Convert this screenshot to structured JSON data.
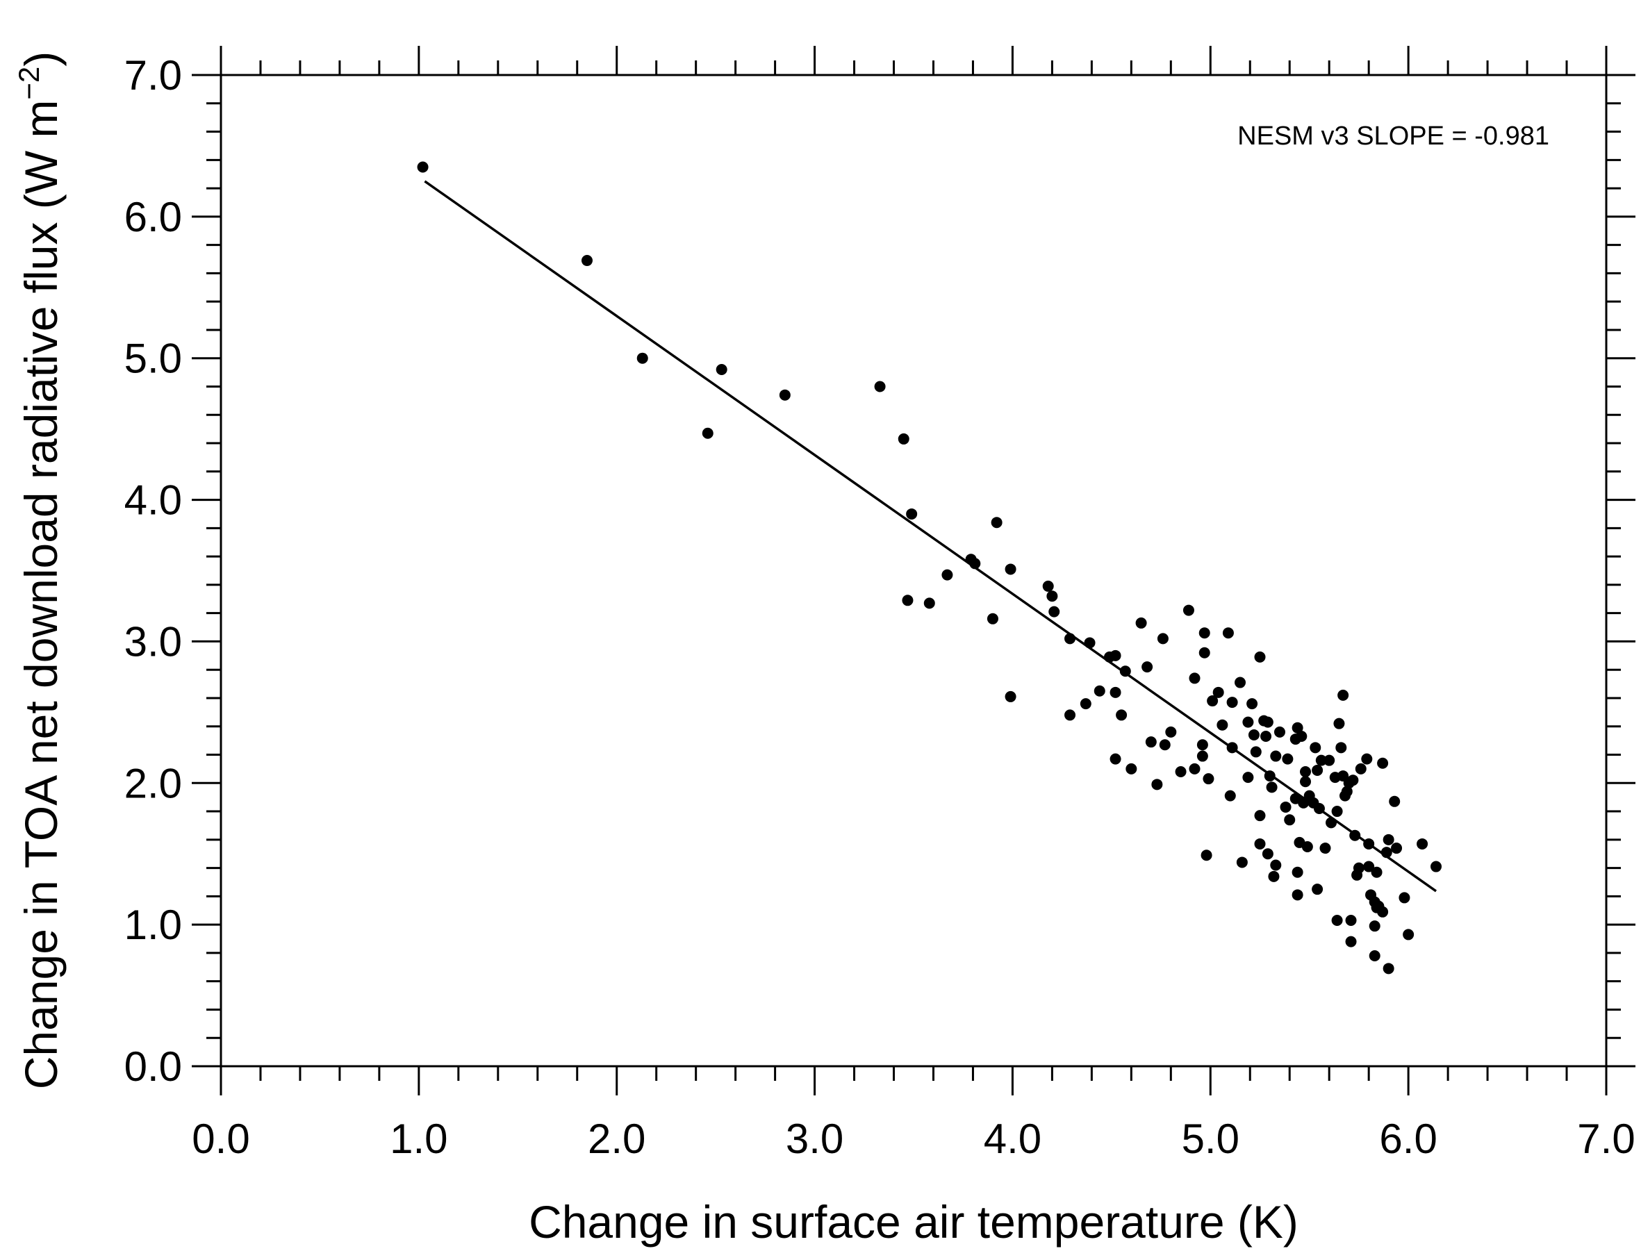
{
  "chart_data": {
    "type": "scatter",
    "title": "",
    "xlabel": "Change in surface air temperature (K)",
    "ylabel": "Change in TOA net download radiative flux (W m",
    "ylabel_sup": "−2",
    "ylabel_close": ")",
    "xlim": [
      0,
      7
    ],
    "ylim": [
      0,
      7
    ],
    "xticks": [
      "0.0",
      "1.0",
      "2.0",
      "3.0",
      "4.0",
      "5.0",
      "6.0",
      "7.0"
    ],
    "yticks": [
      "0.0",
      "1.0",
      "2.0",
      "3.0",
      "4.0",
      "5.0",
      "6.0",
      "7.0"
    ],
    "annotation": "NESM v3 SLOPE = -0.981",
    "regression": {
      "slope": -0.981,
      "intercept": 7.26,
      "x_range": [
        1.03,
        6.14
      ]
    },
    "points": [
      [
        1.02,
        6.35
      ],
      [
        1.85,
        5.69
      ],
      [
        2.13,
        5.0
      ],
      [
        2.53,
        4.92
      ],
      [
        2.46,
        4.47
      ],
      [
        2.85,
        4.74
      ],
      [
        3.33,
        4.8
      ],
      [
        3.45,
        4.43
      ],
      [
        3.49,
        3.9
      ],
      [
        3.47,
        3.29
      ],
      [
        3.58,
        3.27
      ],
      [
        3.67,
        3.47
      ],
      [
        3.79,
        3.58
      ],
      [
        3.81,
        3.55
      ],
      [
        3.92,
        3.84
      ],
      [
        3.99,
        3.51
      ],
      [
        3.9,
        3.16
      ],
      [
        3.99,
        2.61
      ],
      [
        4.18,
        3.39
      ],
      [
        4.2,
        3.32
      ],
      [
        4.21,
        3.21
      ],
      [
        4.29,
        3.02
      ],
      [
        4.29,
        2.48
      ],
      [
        4.39,
        2.99
      ],
      [
        4.37,
        2.56
      ],
      [
        4.44,
        2.65
      ],
      [
        4.49,
        2.89
      ],
      [
        4.52,
        2.9
      ],
      [
        4.52,
        2.64
      ],
      [
        4.57,
        2.79
      ],
      [
        4.55,
        2.48
      ],
      [
        4.52,
        2.17
      ],
      [
        4.6,
        2.1
      ],
      [
        4.65,
        3.13
      ],
      [
        4.68,
        2.82
      ],
      [
        4.7,
        2.29
      ],
      [
        4.73,
        1.99
      ],
      [
        4.76,
        3.02
      ],
      [
        4.77,
        2.27
      ],
      [
        4.8,
        2.36
      ],
      [
        4.85,
        2.08
      ],
      [
        4.89,
        3.22
      ],
      [
        4.92,
        2.74
      ],
      [
        4.92,
        2.1
      ],
      [
        4.96,
        2.27
      ],
      [
        4.96,
        2.19
      ],
      [
        4.97,
        3.06
      ],
      [
        4.97,
        2.92
      ],
      [
        4.99,
        2.03
      ],
      [
        4.98,
        1.49
      ],
      [
        5.01,
        2.58
      ],
      [
        5.04,
        2.64
      ],
      [
        5.06,
        2.41
      ],
      [
        5.09,
        3.06
      ],
      [
        5.1,
        1.91
      ],
      [
        5.11,
        2.25
      ],
      [
        5.11,
        2.57
      ],
      [
        5.15,
        2.71
      ],
      [
        5.16,
        1.44
      ],
      [
        5.19,
        2.04
      ],
      [
        5.19,
        2.43
      ],
      [
        5.21,
        2.56
      ],
      [
        5.22,
        2.34
      ],
      [
        5.23,
        2.22
      ],
      [
        5.25,
        2.89
      ],
      [
        5.25,
        1.77
      ],
      [
        5.25,
        1.57
      ],
      [
        5.27,
        2.44
      ],
      [
        5.28,
        2.33
      ],
      [
        5.29,
        2.43
      ],
      [
        5.29,
        1.5
      ],
      [
        5.3,
        2.05
      ],
      [
        5.31,
        1.97
      ],
      [
        5.32,
        1.34
      ],
      [
        5.33,
        1.42
      ],
      [
        5.33,
        2.19
      ],
      [
        5.35,
        2.36
      ],
      [
        5.38,
        1.83
      ],
      [
        5.39,
        2.17
      ],
      [
        5.4,
        1.74
      ],
      [
        5.43,
        2.31
      ],
      [
        5.44,
        2.39
      ],
      [
        5.43,
        1.89
      ],
      [
        5.44,
        1.37
      ],
      [
        5.44,
        1.21
      ],
      [
        5.45,
        1.58
      ],
      [
        5.46,
        2.33
      ],
      [
        5.47,
        1.86
      ],
      [
        5.48,
        2.08
      ],
      [
        5.48,
        2.01
      ],
      [
        5.49,
        1.55
      ],
      [
        5.5,
        1.91
      ],
      [
        5.52,
        1.86
      ],
      [
        5.53,
        2.25
      ],
      [
        5.54,
        2.09
      ],
      [
        5.55,
        1.82
      ],
      [
        5.54,
        1.25
      ],
      [
        5.56,
        2.16
      ],
      [
        5.58,
        1.54
      ],
      [
        5.6,
        2.16
      ],
      [
        5.61,
        1.72
      ],
      [
        5.63,
        2.04
      ],
      [
        5.64,
        1.03
      ],
      [
        5.64,
        1.8
      ],
      [
        5.65,
        2.42
      ],
      [
        5.66,
        2.25
      ],
      [
        5.67,
        2.62
      ],
      [
        5.67,
        2.05
      ],
      [
        5.68,
        1.91
      ],
      [
        5.69,
        1.94
      ],
      [
        5.7,
        2.0
      ],
      [
        5.71,
        1.03
      ],
      [
        5.71,
        0.88
      ],
      [
        5.72,
        2.02
      ],
      [
        5.73,
        1.63
      ],
      [
        5.74,
        1.35
      ],
      [
        5.75,
        1.4
      ],
      [
        5.76,
        2.1
      ],
      [
        5.79,
        2.17
      ],
      [
        5.8,
        1.57
      ],
      [
        5.8,
        1.41
      ],
      [
        5.81,
        1.21
      ],
      [
        5.83,
        1.16
      ],
      [
        5.83,
        0.99
      ],
      [
        5.84,
        1.37
      ],
      [
        5.84,
        1.12
      ],
      [
        5.85,
        1.13
      ],
      [
        5.83,
        0.78
      ],
      [
        5.87,
        2.14
      ],
      [
        5.87,
        1.09
      ],
      [
        5.89,
        1.51
      ],
      [
        5.9,
        1.6
      ],
      [
        5.9,
        0.69
      ],
      [
        5.93,
        1.87
      ],
      [
        5.94,
        1.54
      ],
      [
        5.98,
        1.19
      ],
      [
        6.0,
        0.93
      ],
      [
        6.07,
        1.57
      ],
      [
        6.14,
        1.41
      ]
    ],
    "grid": false,
    "legend": "none"
  }
}
